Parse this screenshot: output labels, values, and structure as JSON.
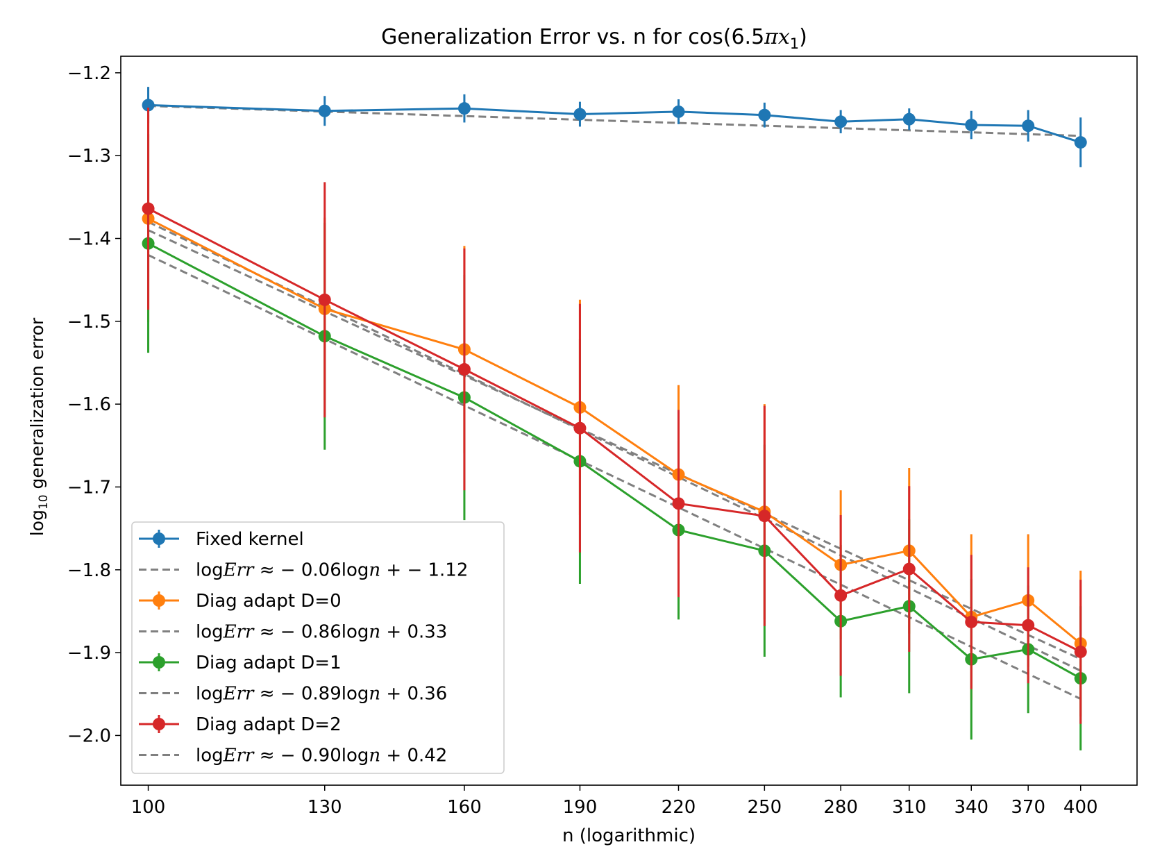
{
  "chart_data": {
    "type": "line",
    "title": "Generalization Error vs. n for cos(6.5πx₁)",
    "title_parts": {
      "main": "Generalization Error vs. n for cos(6.5",
      "pi": "π",
      "x": "x",
      "sub": "1",
      "close": ")"
    },
    "xlabel": "n (logarithmic)",
    "ylabel": "log₁₀ generalization error",
    "ylabel_parts": {
      "log": "log",
      "sub": "10",
      "rest": " generalization error"
    },
    "x_scale": "log",
    "x": [
      100,
      130,
      160,
      190,
      220,
      250,
      280,
      310,
      340,
      370,
      400
    ],
    "x_tick_labels": [
      "100",
      "130",
      "160",
      "190",
      "220",
      "250",
      "280",
      "310",
      "340",
      "370",
      "400"
    ],
    "xlim": [
      96,
      435
    ],
    "ylim": [
      -2.06,
      -1.18
    ],
    "y_ticks": [
      -2.0,
      -1.9,
      -1.8,
      -1.7,
      -1.6,
      -1.5,
      -1.4,
      -1.3,
      -1.2
    ],
    "y_tick_labels": [
      "−2.0",
      "−1.9",
      "−1.8",
      "−1.7",
      "−1.6",
      "−1.5",
      "−1.4",
      "−1.3",
      "−1.2"
    ],
    "grid": false,
    "legend_position": "lower-left",
    "series": [
      {
        "name": "Fixed kernel",
        "color": "#1f77b4",
        "values": [
          -1.239,
          -1.246,
          -1.243,
          -1.25,
          -1.247,
          -1.251,
          -1.259,
          -1.256,
          -1.263,
          -1.264,
          -1.284
        ],
        "errors": [
          0.022,
          0.018,
          0.017,
          0.015,
          0.015,
          0.015,
          0.014,
          0.013,
          0.017,
          0.019,
          0.03
        ],
        "fit_label": {
          "prefix": "log",
          "italic": "Err",
          "mid": " ≈ − 0.06log",
          "italic2": "n",
          "suffix": " + − 1.12"
        },
        "fit_slope": -0.06,
        "fit_intercept": -1.12
      },
      {
        "name": "Diag adapt D=0",
        "color": "#ff7f0e",
        "values": [
          -1.376,
          -1.485,
          -1.534,
          -1.604,
          -1.685,
          -1.73,
          -1.794,
          -1.777,
          -1.857,
          -1.837,
          -1.889
        ],
        "errors": [
          0.125,
          0.11,
          0.125,
          0.13,
          0.108,
          0.13,
          0.09,
          0.1,
          0.1,
          0.08,
          0.088
        ],
        "fit_label": {
          "prefix": "log",
          "italic": "Err",
          "mid": " ≈ − 0.86log",
          "italic2": "n",
          "suffix": " + 0.33"
        },
        "fit_slope": -0.86,
        "fit_intercept": 0.33
      },
      {
        "name": "Diag adapt D=1",
        "color": "#2ca02c",
        "values": [
          -1.406,
          -1.518,
          -1.592,
          -1.669,
          -1.752,
          -1.777,
          -1.862,
          -1.844,
          -1.908,
          -1.896,
          -1.931
        ],
        "errors": [
          0.132,
          0.137,
          0.148,
          0.148,
          0.108,
          0.128,
          0.092,
          0.105,
          0.097,
          0.077,
          0.087
        ],
        "fit_label": {
          "prefix": "log",
          "italic": "Err",
          "mid": " ≈ − 0.89log",
          "italic2": "n",
          "suffix": " + 0.36"
        },
        "fit_slope": -0.89,
        "fit_intercept": 0.36
      },
      {
        "name": "Diag adapt D=2",
        "color": "#d62728",
        "values": [
          -1.364,
          -1.474,
          -1.558,
          -1.629,
          -1.72,
          -1.735,
          -1.831,
          -1.799,
          -1.863,
          -1.867,
          -1.899
        ],
        "errors": [
          0.122,
          0.142,
          0.146,
          0.15,
          0.113,
          0.133,
          0.097,
          0.1,
          0.081,
          0.07,
          0.087
        ],
        "fit_label": {
          "prefix": "log",
          "italic": "Err",
          "mid": " ≈ − 0.90log",
          "italic2": "n",
          "suffix": " + 0.42"
        },
        "fit_slope": -0.9,
        "fit_intercept": 0.42
      }
    ],
    "fit_line_color": "#808080"
  }
}
